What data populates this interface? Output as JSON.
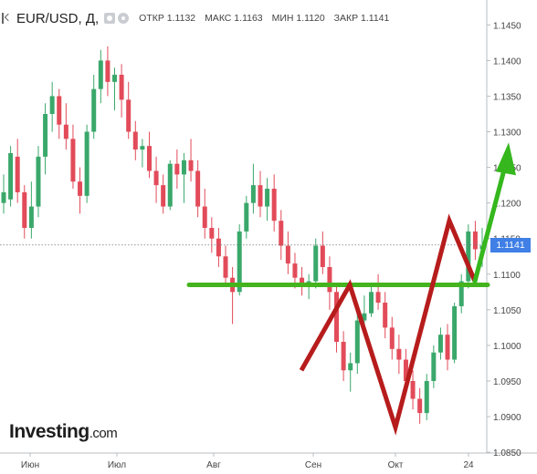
{
  "header": {
    "symbol": "EUR/USD, Д,",
    "open": "ОТКР 1.1132",
    "high": "МАКС 1.1163",
    "low": "МИН 1.1120",
    "close": "ЗАКР 1.1141",
    "icons": [
      "collapse-icon",
      "eye-icon",
      "gear-icon"
    ]
  },
  "logo": {
    "brand": "Investing",
    "suffix": ".com"
  },
  "last_price": "1.1141",
  "colors": {
    "up": "#3aa86b",
    "down": "#e24b59",
    "support": "#44b41e",
    "pattern": "#b71c1c",
    "projection": "#35b71d",
    "price_tag": "#3f7fe6"
  },
  "chart_data": {
    "type": "candlestick",
    "title": "EUR/USD, Д",
    "ylim": [
      1.0845,
      1.1485
    ],
    "y_ticks": [
      "1.1450",
      "1.1400",
      "1.1350",
      "1.1300",
      "1.1250",
      "1.1200",
      "1.1150",
      "1.1100",
      "1.1050",
      "1.1000",
      "1.0950",
      "1.0900",
      "1.0850"
    ],
    "x_ticks": [
      "Июн",
      "Июл",
      "Авг",
      "Сен",
      "Окт",
      "24"
    ],
    "last_value": 1.1141,
    "horizontal_line": 1.1085,
    "pattern_path": [
      1.0965,
      1.1085,
      1.0885,
      1.1175,
      1.109
    ],
    "projection": [
      1.109,
      1.1285
    ],
    "candles": [
      [
        1.12,
        1.124,
        1.1185,
        1.1215
      ],
      [
        1.1205,
        1.128,
        1.1195,
        1.127
      ],
      [
        1.1265,
        1.129,
        1.12,
        1.1215
      ],
      [
        1.1215,
        1.1225,
        1.115,
        1.1165
      ],
      [
        1.1165,
        1.123,
        1.115,
        1.1195
      ],
      [
        1.1195,
        1.128,
        1.118,
        1.1265
      ],
      [
        1.1265,
        1.134,
        1.124,
        1.1325
      ],
      [
        1.1325,
        1.137,
        1.13,
        1.135
      ],
      [
        1.135,
        1.136,
        1.129,
        1.131
      ],
      [
        1.131,
        1.134,
        1.1275,
        1.129
      ],
      [
        1.129,
        1.131,
        1.122,
        1.123
      ],
      [
        1.123,
        1.125,
        1.1185,
        1.121
      ],
      [
        1.121,
        1.131,
        1.12,
        1.13
      ],
      [
        1.13,
        1.138,
        1.129,
        1.136
      ],
      [
        1.136,
        1.1415,
        1.134,
        1.14
      ],
      [
        1.14,
        1.142,
        1.135,
        1.137
      ],
      [
        1.137,
        1.139,
        1.133,
        1.138
      ],
      [
        1.138,
        1.1395,
        1.132,
        1.1345
      ],
      [
        1.1345,
        1.137,
        1.129,
        1.13
      ],
      [
        1.13,
        1.1315,
        1.126,
        1.1275
      ],
      [
        1.1275,
        1.129,
        1.125,
        1.128
      ],
      [
        1.128,
        1.13,
        1.1235,
        1.1245
      ],
      [
        1.1245,
        1.1265,
        1.12,
        1.1225
      ],
      [
        1.1225,
        1.124,
        1.1185,
        1.1195
      ],
      [
        1.1195,
        1.126,
        1.119,
        1.1255
      ],
      [
        1.1255,
        1.1275,
        1.122,
        1.124
      ],
      [
        1.124,
        1.127,
        1.12,
        1.126
      ],
      [
        1.126,
        1.129,
        1.123,
        1.1245
      ],
      [
        1.1245,
        1.126,
        1.118,
        1.1195
      ],
      [
        1.1195,
        1.122,
        1.115,
        1.1165
      ],
      [
        1.1165,
        1.118,
        1.113,
        1.115
      ],
      [
        1.115,
        1.1165,
        1.111,
        1.1125
      ],
      [
        1.1125,
        1.114,
        1.1085,
        1.1095
      ],
      [
        1.1095,
        1.111,
        1.103,
        1.1075
      ],
      [
        1.1075,
        1.117,
        1.107,
        1.116
      ],
      [
        1.116,
        1.121,
        1.115,
        1.12
      ],
      [
        1.12,
        1.1255,
        1.1185,
        1.1225
      ],
      [
        1.1225,
        1.1245,
        1.118,
        1.1195
      ],
      [
        1.1195,
        1.1235,
        1.1175,
        1.122
      ],
      [
        1.122,
        1.124,
        1.116,
        1.1175
      ],
      [
        1.1175,
        1.119,
        1.112,
        1.114
      ],
      [
        1.114,
        1.116,
        1.11,
        1.1115
      ],
      [
        1.1115,
        1.113,
        1.108,
        1.1095
      ],
      [
        1.1095,
        1.111,
        1.107,
        1.1085
      ],
      [
        1.1085,
        1.11,
        1.1065,
        1.109
      ],
      [
        1.109,
        1.115,
        1.108,
        1.114
      ],
      [
        1.114,
        1.116,
        1.11,
        1.111
      ],
      [
        1.111,
        1.1125,
        1.105,
        1.1075
      ],
      [
        1.1075,
        1.1085,
        1.099,
        1.1005
      ],
      [
        1.1005,
        1.102,
        1.095,
        1.0965
      ],
      [
        1.0965,
        1.099,
        1.0935,
        1.0975
      ],
      [
        1.0975,
        1.1045,
        1.096,
        1.1035
      ],
      [
        1.1035,
        1.107,
        1.102,
        1.1045
      ],
      [
        1.1045,
        1.1085,
        1.104,
        1.1075
      ],
      [
        1.1075,
        1.11,
        1.105,
        1.106
      ],
      [
        1.106,
        1.1075,
        1.101,
        1.1025
      ],
      [
        1.1025,
        1.104,
        1.098,
        1.0995
      ],
      [
        1.0995,
        1.1015,
        1.096,
        1.098
      ],
      [
        1.098,
        1.0995,
        1.0935,
        1.095
      ],
      [
        1.095,
        1.0965,
        1.091,
        1.0925
      ],
      [
        1.0925,
        1.094,
        1.089,
        1.0905
      ],
      [
        1.0905,
        1.096,
        1.0895,
        1.095
      ],
      [
        1.095,
        1.1,
        1.094,
        1.099
      ],
      [
        1.099,
        1.1025,
        1.098,
        1.1015
      ],
      [
        1.1015,
        1.103,
        1.0965,
        1.098
      ],
      [
        1.098,
        1.106,
        1.0975,
        1.1055
      ],
      [
        1.1055,
        1.11,
        1.1045,
        1.109
      ],
      [
        1.109,
        1.117,
        1.108,
        1.116
      ],
      [
        1.116,
        1.1175,
        1.112,
        1.1135
      ],
      [
        1.1135,
        1.1165,
        1.111,
        1.114
      ]
    ]
  }
}
